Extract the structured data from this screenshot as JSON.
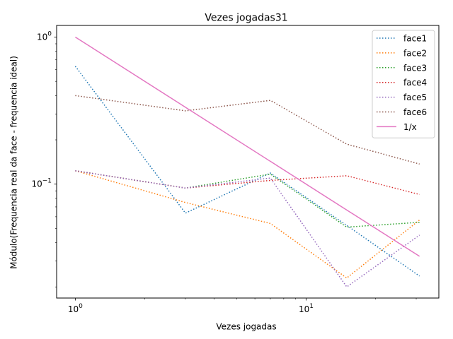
{
  "chart_data": {
    "type": "line",
    "title": "Vezes jogadas31",
    "xlabel": "Vezes jogadas",
    "ylabel": "Módulo(Frequencia real da face - frequencia ideal)",
    "xscale": "log",
    "yscale": "log",
    "xlim": [
      0.83,
      37.6
    ],
    "ylim": [
      0.0168,
      1.2
    ],
    "x_ticks": [
      {
        "value": 1,
        "base": "10",
        "exp": "0"
      },
      {
        "value": 10,
        "base": "10",
        "exp": "1"
      }
    ],
    "y_ticks": [
      {
        "value": 0.1,
        "base": "10",
        "exp": "−1"
      },
      {
        "value": 1,
        "base": "10",
        "exp": "0"
      }
    ],
    "x": [
      1,
      3,
      7,
      15,
      31
    ],
    "series": [
      {
        "name": "face1",
        "style": "dotted",
        "color": "#1f77b4",
        "values": [
          0.6333,
          0.0635,
          0.119,
          0.0524,
          0.0237
        ]
      },
      {
        "name": "face2",
        "style": "dotted",
        "color": "#ff7f0e",
        "values": [
          0.1233,
          0.075,
          0.054,
          0.023,
          0.057
        ]
      },
      {
        "name": "face3",
        "style": "dotted",
        "color": "#2ca02c",
        "values": [
          0.1233,
          0.094,
          0.117,
          0.051,
          0.055
        ]
      },
      {
        "name": "face4",
        "style": "dotted",
        "color": "#d62728",
        "values": [
          0.1233,
          0.094,
          0.106,
          0.114,
          0.085
        ]
      },
      {
        "name": "face5",
        "style": "dotted",
        "color": "#9467bd",
        "values": [
          0.1233,
          0.094,
          0.11,
          0.02,
          0.045
        ]
      },
      {
        "name": "face6",
        "style": "dotted",
        "color": "#8c564b",
        "values": [
          0.4,
          0.315,
          0.371,
          0.187,
          0.137
        ]
      },
      {
        "name": "1/x",
        "style": "solid",
        "color": "#e377c2",
        "values": [
          1.0,
          0.3333,
          0.1429,
          0.0667,
          0.0323
        ]
      }
    ],
    "legend": "top-right",
    "grid": false
  }
}
